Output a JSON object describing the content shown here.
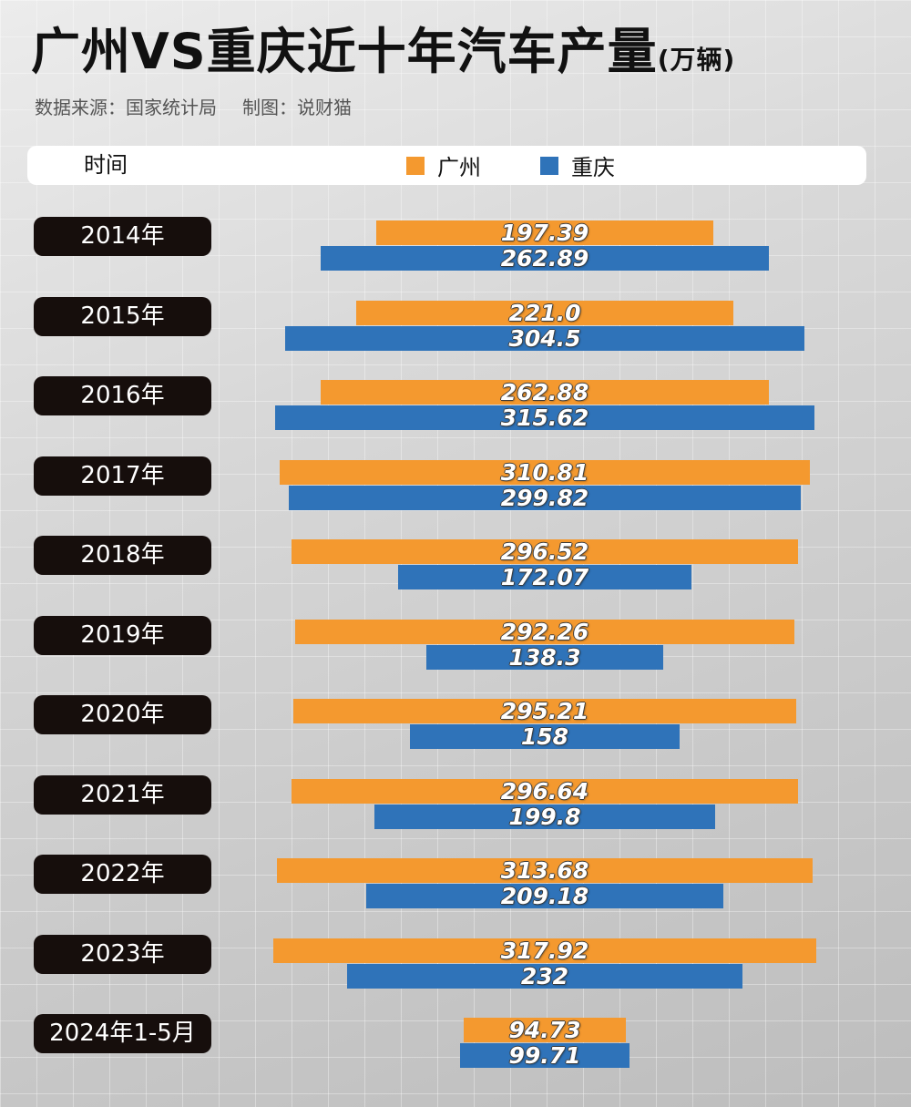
{
  "title": "广州VS重庆近十年汽车产量",
  "title_unit": "(万辆)",
  "source": "数据来源：国家统计局",
  "credit": "制图：说财猫",
  "header": {
    "time_label": "时间"
  },
  "colors": {
    "guangzhou": "#f4992f",
    "chongqing": "#2f73b9",
    "label_bg": "#160e0c"
  },
  "chart_data": {
    "type": "bar",
    "orientation": "horizontal-centered",
    "title": "广州VS重庆近十年汽车产量(万辆)",
    "legend_position": "top",
    "categories": [
      "2014年",
      "2015年",
      "2016年",
      "2017年",
      "2018年",
      "2019年",
      "2020年",
      "2021年",
      "2022年",
      "2023年",
      "2024年1-5月"
    ],
    "series": [
      {
        "name": "广州",
        "color": "#f4992f",
        "values": [
          197.39,
          221.0,
          262.88,
          310.81,
          296.52,
          292.26,
          295.21,
          296.64,
          313.68,
          317.92,
          94.73
        ],
        "labels": [
          "197.39",
          "221.0",
          "262.88",
          "310.81",
          "296.52",
          "292.26",
          "295.21",
          "296.64",
          "313.68",
          "317.92",
          "94.73"
        ]
      },
      {
        "name": "重庆",
        "color": "#2f73b9",
        "values": [
          262.89,
          304.5,
          315.62,
          299.82,
          172.07,
          138.3,
          158,
          199.8,
          209.18,
          232,
          99.71
        ],
        "labels": [
          "262.89",
          "304.5",
          "315.62",
          "299.82",
          "172.07",
          "138.3",
          "158",
          "199.8",
          "209.18",
          "232",
          "99.71"
        ]
      }
    ]
  }
}
